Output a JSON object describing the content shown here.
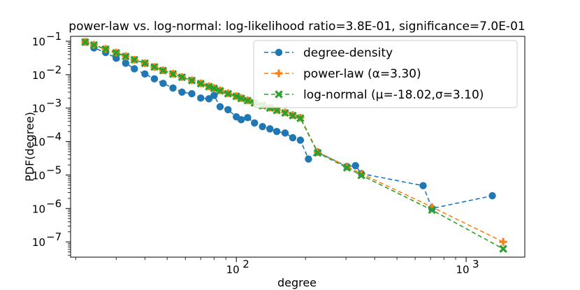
{
  "chart_data": {
    "type": "line",
    "title": "power-law vs. log-normal: log-likelihood ratio=3.8E-01, significance=7.0E-01",
    "xlabel": "degree",
    "ylabel": "PDF(degree)",
    "xscale": "log",
    "yscale": "log",
    "xlim": [
      19,
      1800
    ],
    "ylim": [
      3.5e-08,
      0.14
    ],
    "x_ticks": [
      {
        "value": 100,
        "label": "10",
        "exp": "2"
      },
      {
        "value": 1000,
        "label": "10",
        "exp": "3"
      }
    ],
    "y_ticks": [
      {
        "value": 0.1,
        "label": "10",
        "exp": "−1"
      },
      {
        "value": 0.01,
        "label": "10",
        "exp": "−2"
      },
      {
        "value": 0.001,
        "label": "10",
        "exp": "−3"
      },
      {
        "value": 0.0001,
        "label": "10",
        "exp": "−4"
      },
      {
        "value": 1e-05,
        "label": "10",
        "exp": "−5"
      },
      {
        "value": 1e-06,
        "label": "10",
        "exp": "−6"
      },
      {
        "value": 1e-07,
        "label": "10",
        "exp": "−7"
      }
    ],
    "legend_position": "top-right",
    "series": [
      {
        "name": "degree-density",
        "legend_label": "degree-density",
        "color": "#1f77b4",
        "marker": "circle",
        "x": [
          22,
          24,
          27,
          30,
          33,
          36,
          40,
          44,
          48,
          53,
          58,
          64,
          70,
          76,
          80,
          85,
          92,
          100,
          105,
          112,
          120,
          130,
          140,
          150,
          163,
          176,
          190,
          206,
          226,
          303,
          330,
          350,
          650,
          710,
          1300
        ],
        "y": [
          0.095,
          0.063,
          0.046,
          0.031,
          0.022,
          0.015,
          0.0105,
          0.0075,
          0.0055,
          0.004,
          0.003,
          0.0027,
          0.002,
          0.0019,
          0.0024,
          0.0011,
          0.0009,
          0.00055,
          0.00045,
          0.00052,
          0.00036,
          0.00028,
          0.00024,
          0.0002,
          0.00018,
          0.00013,
          0.00011,
          3e-05,
          4.8e-05,
          1.8e-05,
          1.9e-05,
          1.1e-05,
          4.8e-06,
          1e-06,
          2.4e-06
        ]
      },
      {
        "name": "power-law",
        "legend_label": "power-law (α=3.30)",
        "color": "#ff7f0e",
        "marker": "plus",
        "x": [
          22,
          24,
          27,
          30,
          33,
          36,
          40,
          44,
          48,
          53,
          58,
          64,
          70,
          76,
          80,
          85,
          92,
          100,
          105,
          112,
          120,
          130,
          140,
          150,
          163,
          176,
          190,
          226,
          303,
          350,
          710,
          1450
        ],
        "y": [
          0.095,
          0.078,
          0.059,
          0.046,
          0.036,
          0.028,
          0.022,
          0.017,
          0.0135,
          0.0107,
          0.0085,
          0.0068,
          0.0055,
          0.0045,
          0.004,
          0.0034,
          0.0028,
          0.0023,
          0.002,
          0.00172,
          0.00147,
          0.00122,
          0.00104,
          0.00089,
          0.00075,
          0.00062,
          0.00052,
          4.9e-05,
          1.8e-05,
          1.1e-05,
          1.1e-06,
          1e-07
        ]
      },
      {
        "name": "log-normal",
        "legend_label": "log-normal (μ=-18.02,σ=3.10)",
        "color": "#2ca02c",
        "marker": "x",
        "x": [
          22,
          24,
          27,
          30,
          33,
          36,
          40,
          44,
          48,
          53,
          58,
          64,
          70,
          76,
          80,
          85,
          92,
          100,
          105,
          112,
          120,
          130,
          140,
          150,
          163,
          176,
          190,
          226,
          303,
          350,
          710,
          1450
        ],
        "y": [
          0.094,
          0.077,
          0.058,
          0.045,
          0.035,
          0.028,
          0.022,
          0.017,
          0.0133,
          0.0105,
          0.0084,
          0.0067,
          0.0054,
          0.0044,
          0.0039,
          0.0033,
          0.0027,
          0.00225,
          0.00195,
          0.00168,
          0.00143,
          0.00119,
          0.00101,
          0.00086,
          0.00072,
          0.0006,
          0.0005,
          4.6e-05,
          1.65e-05,
          9.8e-06,
          9e-07,
          6.2e-08
        ]
      }
    ]
  }
}
